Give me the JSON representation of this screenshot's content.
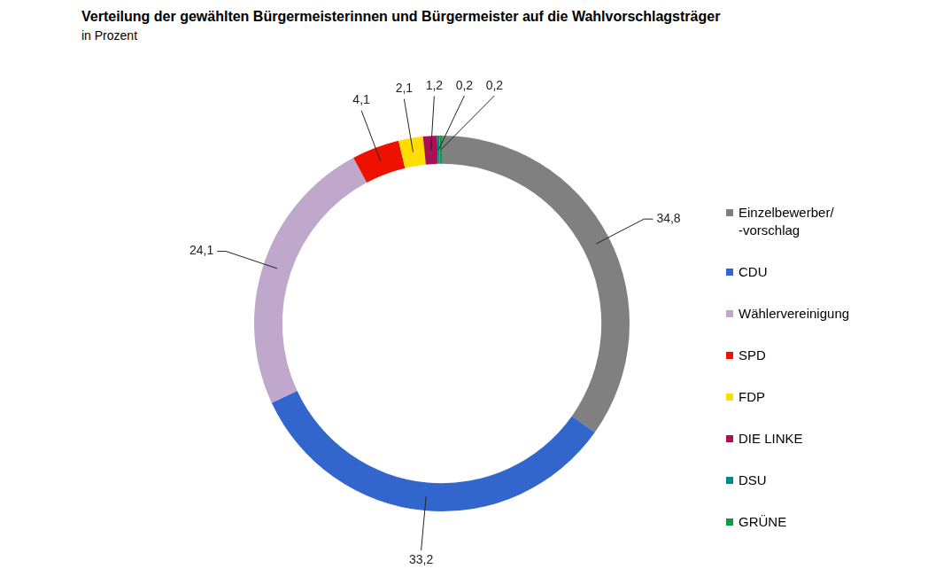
{
  "chart_data": {
    "type": "doughnut",
    "title": "Verteilung der gewählten Bürgermeisterinnen und Bürgermeister auf die Wahlvorschlagsträger",
    "subtitle": "in Prozent",
    "categories": [
      "Einzelbewerber/-vorschlag",
      "CDU",
      "Wählervereinigung",
      "SPD",
      "FDP",
      "DIE LINKE",
      "DSU",
      "GRÜNE"
    ],
    "values": [
      34.8,
      33.2,
      24.1,
      4.1,
      2.1,
      1.2,
      0.2,
      0.2
    ],
    "value_labels": [
      "34,8",
      "33,2",
      "24,1",
      "4,1",
      "2,1",
      "1,2",
      "0,2",
      "0,2"
    ],
    "colors": [
      "#808080",
      "#3366cc",
      "#c0a8cc",
      "#ee1100",
      "#ffdd00",
      "#aa1155",
      "#008888",
      "#119944"
    ],
    "legend": "right",
    "data_labels": true
  }
}
